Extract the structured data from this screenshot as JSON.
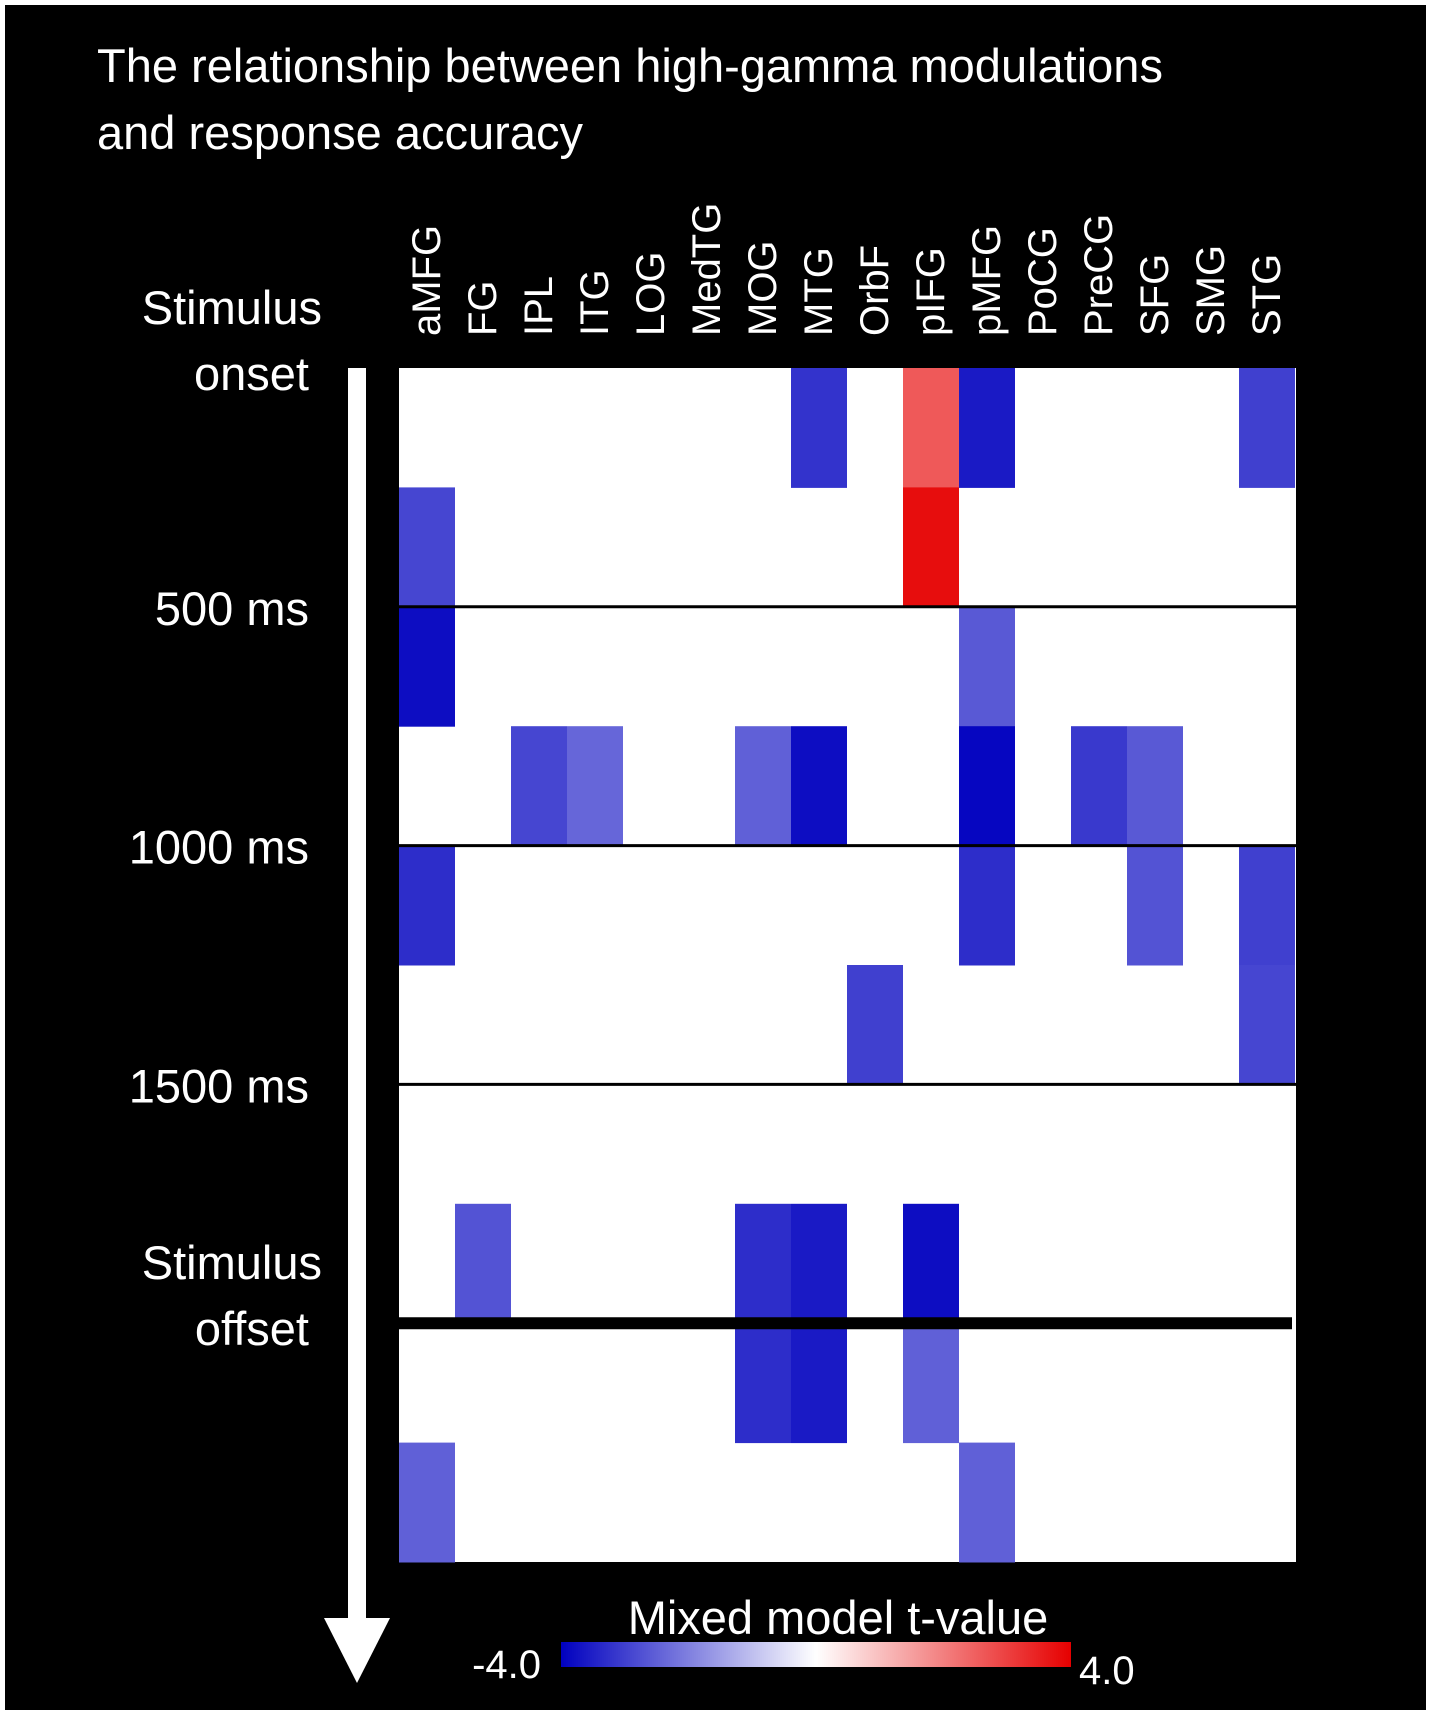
{
  "chart_data": {
    "type": "heatmap",
    "title_lines": [
      "The relationship between high-gamma modulations",
      "and response accuracy"
    ],
    "columns": [
      "aMFG",
      "FG",
      "IPL",
      "ITG",
      "LOG",
      "MedTG",
      "MOG",
      "MTG",
      "OrbF",
      "pIFG",
      "pMFG",
      "PoCG",
      "PreCG",
      "SFG",
      "SMG",
      "STG"
    ],
    "time_bins": 10,
    "time_labels": [
      {
        "lines": [
          "Stimulus",
          "onset"
        ],
        "boundary": 0
      },
      {
        "lines": [
          "500 ms"
        ],
        "boundary": 2
      },
      {
        "lines": [
          "1000 ms"
        ],
        "boundary": 4
      },
      {
        "lines": [
          "1500 ms"
        ],
        "boundary": 6
      },
      {
        "lines": [
          "Stimulus",
          "offset"
        ],
        "boundary": 8
      }
    ],
    "boundary_lines": [
      {
        "boundary": 2,
        "style": "thin"
      },
      {
        "boundary": 4,
        "style": "thin"
      },
      {
        "boundary": 6,
        "style": "thin"
      },
      {
        "boundary": 8,
        "style": "thick"
      }
    ],
    "cells": [
      {
        "row": 0,
        "col": "MTG",
        "t": -3.2
      },
      {
        "row": 0,
        "col": "pIFG",
        "t": 2.6
      },
      {
        "row": 0,
        "col": "pMFG",
        "t": -3.6
      },
      {
        "row": 0,
        "col": "STG",
        "t": -3.0
      },
      {
        "row": 1,
        "col": "aMFG",
        "t": -2.9
      },
      {
        "row": 1,
        "col": "pIFG",
        "t": 3.8
      },
      {
        "row": 2,
        "col": "aMFG",
        "t": -3.8
      },
      {
        "row": 2,
        "col": "pMFG",
        "t": -2.6
      },
      {
        "row": 3,
        "col": "IPL",
        "t": -2.9
      },
      {
        "row": 3,
        "col": "ITG",
        "t": -2.4
      },
      {
        "row": 3,
        "col": "MOG",
        "t": -2.5
      },
      {
        "row": 3,
        "col": "MTG",
        "t": -3.8
      },
      {
        "row": 3,
        "col": "pMFG",
        "t": -3.9
      },
      {
        "row": 3,
        "col": "PreCG",
        "t": -3.1
      },
      {
        "row": 3,
        "col": "SFG",
        "t": -2.6
      },
      {
        "row": 4,
        "col": "aMFG",
        "t": -3.3
      },
      {
        "row": 4,
        "col": "pMFG",
        "t": -3.3
      },
      {
        "row": 4,
        "col": "SFG",
        "t": -2.7
      },
      {
        "row": 4,
        "col": "STG",
        "t": -3.0
      },
      {
        "row": 5,
        "col": "OrbF",
        "t": -3.0
      },
      {
        "row": 5,
        "col": "STG",
        "t": -2.9
      },
      {
        "row": 7,
        "col": "FG",
        "t": -2.7
      },
      {
        "row": 7,
        "col": "MOG",
        "t": -3.3
      },
      {
        "row": 7,
        "col": "MTG",
        "t": -3.6
      },
      {
        "row": 7,
        "col": "pIFG",
        "t": -3.8
      },
      {
        "row": 8,
        "col": "MOG",
        "t": -3.3
      },
      {
        "row": 8,
        "col": "MTG",
        "t": -3.6
      },
      {
        "row": 8,
        "col": "pIFG",
        "t": -2.5
      },
      {
        "row": 9,
        "col": "aMFG",
        "t": -2.5
      },
      {
        "row": 9,
        "col": "pMFG",
        "t": -2.5
      }
    ],
    "colorbar": {
      "label": "Mixed model t-value",
      "min": -4.0,
      "max": 4.0,
      "min_label": "-4.0",
      "max_label": "4.0",
      "colors": [
        "#0000bf",
        "#ffffff",
        "#e60000"
      ]
    },
    "background": "#000000",
    "text_color": "#ffffff",
    "plot_background": "#ffffff",
    "time_arrow": "down"
  }
}
